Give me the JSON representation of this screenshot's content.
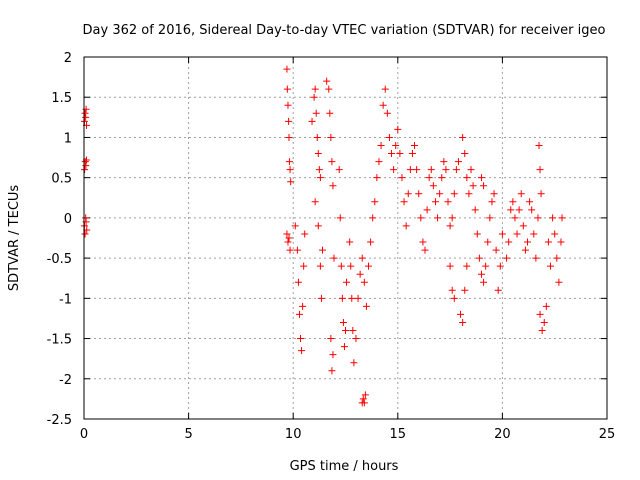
{
  "chart_data": {
    "type": "scatter",
    "title": "Day 362 of 2016, Sidereal Day-to-day VTEC variation (SDTVAR) for receiver igeo",
    "xlabel": "GPS time / hours",
    "ylabel": "SDTVAR / TECUs",
    "xlim": [
      0,
      25
    ],
    "ylim": [
      -2.5,
      2
    ],
    "xticks": [
      0,
      5,
      10,
      15,
      20,
      25
    ],
    "xtick_labels": [
      "0",
      "5",
      "10",
      "15",
      "20",
      "25"
    ],
    "yticks": [
      -2.5,
      -2,
      -1.5,
      -1,
      -0.5,
      0,
      0.5,
      1,
      1.5,
      2
    ],
    "ytick_labels": [
      "-2.5",
      "-2",
      "-1.5",
      "-1",
      "-0.5",
      "0",
      "0.5",
      "1",
      "1.5",
      "2"
    ],
    "grid": true,
    "marker": "+",
    "series": [
      {
        "name": "SDTVAR",
        "color": "#ff0000",
        "points": [
          [
            0.02,
            1.2
          ],
          [
            0.05,
            1.3
          ],
          [
            0.08,
            1.25
          ],
          [
            0.1,
            1.35
          ],
          [
            0.12,
            1.15
          ],
          [
            0.03,
            0.6
          ],
          [
            0.06,
            0.7
          ],
          [
            0.09,
            0.65
          ],
          [
            0.12,
            0.72
          ],
          [
            0.02,
            -0.1
          ],
          [
            0.05,
            -0.2
          ],
          [
            0.08,
            0.0
          ],
          [
            0.1,
            -0.05
          ],
          [
            0.13,
            -0.15
          ],
          [
            9.7,
            1.85
          ],
          [
            9.72,
            1.6
          ],
          [
            9.75,
            1.4
          ],
          [
            9.78,
            1.2
          ],
          [
            9.8,
            1.0
          ],
          [
            9.82,
            0.7
          ],
          [
            9.85,
            0.6
          ],
          [
            9.88,
            0.45
          ],
          [
            9.7,
            -0.2
          ],
          [
            9.75,
            -0.3
          ],
          [
            9.8,
            -0.25
          ],
          [
            9.85,
            -0.4
          ],
          [
            10.1,
            -0.1
          ],
          [
            10.2,
            -0.4
          ],
          [
            10.25,
            -0.8
          ],
          [
            10.3,
            -1.2
          ],
          [
            10.35,
            -1.5
          ],
          [
            10.4,
            -1.65
          ],
          [
            10.45,
            -1.1
          ],
          [
            10.5,
            -0.6
          ],
          [
            10.55,
            -0.2
          ],
          [
            10.9,
            1.2
          ],
          [
            11.0,
            1.5
          ],
          [
            11.05,
            1.6
          ],
          [
            11.1,
            1.3
          ],
          [
            11.15,
            1.0
          ],
          [
            11.2,
            0.8
          ],
          [
            11.25,
            0.6
          ],
          [
            11.3,
            0.5
          ],
          [
            11.05,
            0.2
          ],
          [
            11.2,
            -0.1
          ],
          [
            11.3,
            -0.6
          ],
          [
            11.35,
            -1.0
          ],
          [
            11.4,
            -0.4
          ],
          [
            11.6,
            1.7
          ],
          [
            11.7,
            1.6
          ],
          [
            11.75,
            1.3
          ],
          [
            11.8,
            1.0
          ],
          [
            11.85,
            0.7
          ],
          [
            11.9,
            0.4
          ],
          [
            11.95,
            -0.5
          ],
          [
            11.8,
            -1.5
          ],
          [
            11.85,
            -1.9
          ],
          [
            11.9,
            -1.7
          ],
          [
            12.2,
            0.6
          ],
          [
            12.25,
            0.0
          ],
          [
            12.3,
            -0.6
          ],
          [
            12.35,
            -1.0
          ],
          [
            12.4,
            -1.3
          ],
          [
            12.45,
            -1.6
          ],
          [
            12.5,
            -1.4
          ],
          [
            12.55,
            -0.8
          ],
          [
            12.7,
            -0.3
          ],
          [
            12.75,
            -0.6
          ],
          [
            12.8,
            -1.0
          ],
          [
            12.85,
            -1.4
          ],
          [
            12.9,
            -1.8
          ],
          [
            13.0,
            -1.5
          ],
          [
            13.1,
            -1.0
          ],
          [
            13.2,
            -0.7
          ],
          [
            13.3,
            -0.5
          ],
          [
            13.4,
            -0.8
          ],
          [
            13.5,
            -1.1
          ],
          [
            13.3,
            -2.3
          ],
          [
            13.35,
            -2.25
          ],
          [
            13.4,
            -2.3
          ],
          [
            13.45,
            -2.2
          ],
          [
            13.6,
            -0.6
          ],
          [
            13.7,
            -0.3
          ],
          [
            13.8,
            0.0
          ],
          [
            13.9,
            0.2
          ],
          [
            14.0,
            0.5
          ],
          [
            14.1,
            0.7
          ],
          [
            14.2,
            0.9
          ],
          [
            14.3,
            1.4
          ],
          [
            14.4,
            1.6
          ],
          [
            14.5,
            1.3
          ],
          [
            14.6,
            1.0
          ],
          [
            14.7,
            0.8
          ],
          [
            14.8,
            0.6
          ],
          [
            14.9,
            0.9
          ],
          [
            15.0,
            1.1
          ],
          [
            15.1,
            0.8
          ],
          [
            15.2,
            0.5
          ],
          [
            15.3,
            0.2
          ],
          [
            15.4,
            -0.1
          ],
          [
            15.5,
            0.3
          ],
          [
            15.6,
            0.6
          ],
          [
            15.7,
            0.8
          ],
          [
            15.8,
            0.9
          ],
          [
            15.9,
            0.6
          ],
          [
            16.0,
            0.3
          ],
          [
            16.1,
            0.0
          ],
          [
            16.2,
            -0.3
          ],
          [
            16.3,
            -0.4
          ],
          [
            16.4,
            0.1
          ],
          [
            16.5,
            0.5
          ],
          [
            16.6,
            0.6
          ],
          [
            16.7,
            0.4
          ],
          [
            16.8,
            0.2
          ],
          [
            16.9,
            0.0
          ],
          [
            17.0,
            0.3
          ],
          [
            17.1,
            0.5
          ],
          [
            17.2,
            0.7
          ],
          [
            17.3,
            0.6
          ],
          [
            17.4,
            0.2
          ],
          [
            17.5,
            -0.1
          ],
          [
            17.6,
            0.0
          ],
          [
            17.7,
            0.3
          ],
          [
            17.8,
            0.6
          ],
          [
            17.9,
            0.7
          ],
          [
            17.5,
            -0.6
          ],
          [
            17.6,
            -0.9
          ],
          [
            17.7,
            -1.0
          ],
          [
            18.0,
            -1.2
          ],
          [
            18.1,
            -1.3
          ],
          [
            18.2,
            -0.9
          ],
          [
            18.3,
            -0.6
          ],
          [
            18.1,
            1.0
          ],
          [
            18.2,
            0.8
          ],
          [
            18.3,
            0.5
          ],
          [
            18.4,
            0.3
          ],
          [
            18.5,
            0.6
          ],
          [
            18.6,
            0.4
          ],
          [
            18.7,
            0.1
          ],
          [
            18.8,
            -0.2
          ],
          [
            18.9,
            -0.5
          ],
          [
            19.0,
            -0.7
          ],
          [
            19.1,
            -0.8
          ],
          [
            19.2,
            -0.6
          ],
          [
            19.3,
            -0.3
          ],
          [
            19.4,
            0.0
          ],
          [
            19.5,
            0.2
          ],
          [
            19.6,
            0.3
          ],
          [
            19.0,
            0.5
          ],
          [
            19.1,
            0.4
          ],
          [
            19.7,
            -0.4
          ],
          [
            19.8,
            -0.9
          ],
          [
            19.9,
            -0.6
          ],
          [
            20.0,
            -0.2
          ],
          [
            20.2,
            -0.5
          ],
          [
            20.3,
            -0.3
          ],
          [
            20.4,
            0.1
          ],
          [
            20.5,
            0.2
          ],
          [
            20.6,
            0.0
          ],
          [
            20.7,
            -0.2
          ],
          [
            20.8,
            0.1
          ],
          [
            20.9,
            0.3
          ],
          [
            21.0,
            -0.1
          ],
          [
            21.1,
            -0.4
          ],
          [
            21.2,
            -0.3
          ],
          [
            21.3,
            0.2
          ],
          [
            21.4,
            0.1
          ],
          [
            21.5,
            -0.2
          ],
          [
            21.6,
            -0.5
          ],
          [
            21.7,
            0.0
          ],
          [
            21.75,
            0.9
          ],
          [
            21.8,
            0.6
          ],
          [
            21.85,
            0.3
          ],
          [
            21.8,
            -1.2
          ],
          [
            21.9,
            -1.4
          ],
          [
            22.0,
            -1.3
          ],
          [
            22.1,
            -1.1
          ],
          [
            22.2,
            -0.3
          ],
          [
            22.3,
            -0.6
          ],
          [
            22.4,
            0.0
          ],
          [
            22.5,
            -0.2
          ],
          [
            22.6,
            -0.5
          ],
          [
            22.7,
            -0.8
          ],
          [
            22.8,
            -0.3
          ],
          [
            22.85,
            0.0
          ]
        ]
      }
    ]
  }
}
